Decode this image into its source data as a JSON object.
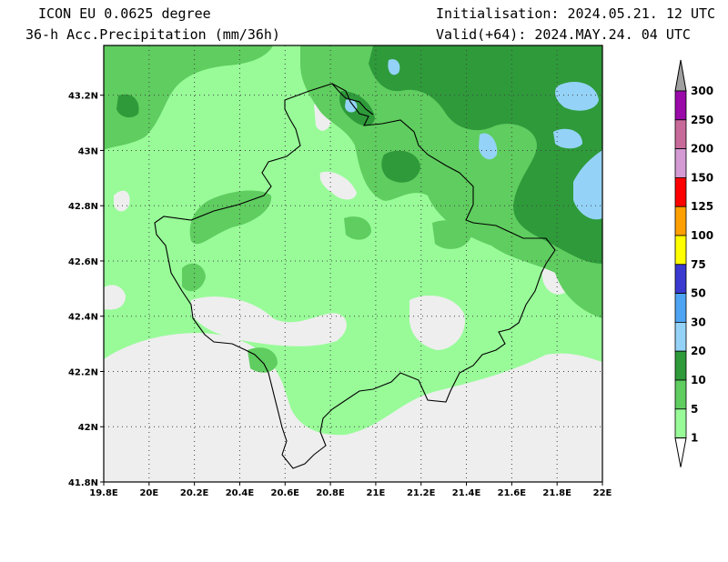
{
  "header": {
    "model_title": "ICON EU 0.0625 degree",
    "field_title": "36-h Acc.Precipitation (mm/36h)",
    "initialisation": "Initialisation: 2024.05.21. 12 UTC",
    "valid": "Valid(+64): 2024.MAY.24. 04 UTC"
  },
  "map": {
    "lon_range": [
      19.8,
      22.0
    ],
    "lat_range": [
      41.8,
      43.38
    ],
    "x_ticks": [
      "19.8E",
      "20E",
      "20.2E",
      "20.4E",
      "20.6E",
      "20.8E",
      "21E",
      "21.2E",
      "21.4E",
      "21.6E",
      "21.8E",
      "22E"
    ],
    "y_ticks": [
      "41.8N",
      "42N",
      "42.2N",
      "42.4N",
      "42.6N",
      "42.8N",
      "43N",
      "43.2N"
    ]
  },
  "colorbar": {
    "levels": [
      "1",
      "5",
      "10",
      "20",
      "30",
      "50",
      "75",
      "100",
      "125",
      "150",
      "200",
      "250",
      "300"
    ],
    "colors": {
      "below_1": "#ffffff",
      "1_5": "#98fb98",
      "5_10": "#5fcd5f",
      "10_20": "#2e9a3a",
      "20_30": "#94d3f7",
      "30_50": "#4ea4f2",
      "50_75": "#3a3ad0",
      "75_100": "#ffff00",
      "100_125": "#ffa000",
      "125_150": "#ff0000",
      "150_200": "#d39ad3",
      "200_250": "#c86a99",
      "250_300": "#9a0aa8",
      "above_300": "#a0a0a0"
    }
  },
  "colors": {
    "no_precip": "#eeeeee",
    "border_line": "#000000",
    "grid_line": "#444444"
  }
}
